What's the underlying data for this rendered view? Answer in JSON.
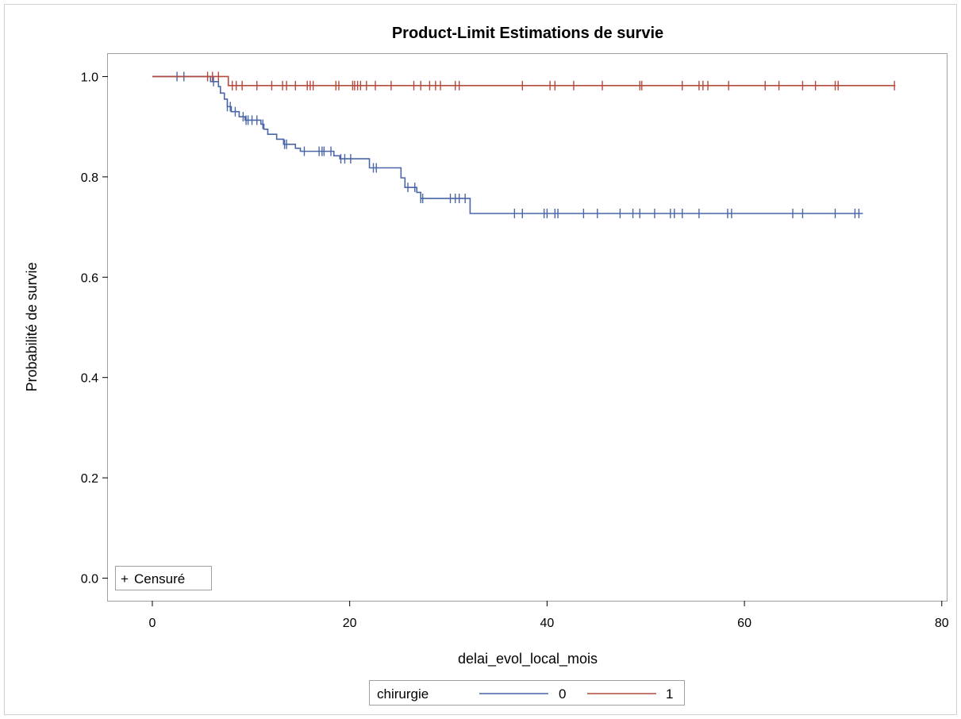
{
  "chart_data": {
    "type": "line",
    "title": "Product-Limit Estimations de survie",
    "xlabel": "delai_evol_local_mois",
    "ylabel": "Probabilité de survie",
    "xlim": [
      -4.5,
      80.5
    ],
    "ylim": [
      -0.045,
      1.045
    ],
    "x_ticks": [
      0,
      20,
      40,
      60,
      80
    ],
    "x_tick_labels": [
      "0",
      "20",
      "40",
      "60",
      "80"
    ],
    "y_ticks": [
      0.0,
      0.2,
      0.4,
      0.6,
      0.8,
      1.0
    ],
    "y_tick_labels": [
      "0.0",
      "0.2",
      "0.4",
      "0.6",
      "0.8",
      "1.0"
    ],
    "grid": false,
    "inset_legend": {
      "symbol": "+",
      "label": "Censuré",
      "placement": "bottom-left"
    },
    "legend": {
      "title": "chirurgie",
      "placement": "bottom"
    },
    "series": [
      {
        "name": "0",
        "color": "#4a66a8",
        "steps": [
          [
            0,
            1.0
          ],
          [
            5.9,
            0.99
          ],
          [
            6.7,
            0.98
          ],
          [
            6.9,
            0.967
          ],
          [
            7.3,
            0.955
          ],
          [
            7.6,
            0.94
          ],
          [
            8.0,
            0.93
          ],
          [
            8.8,
            0.92
          ],
          [
            9.4,
            0.913
          ],
          [
            11.0,
            0.905
          ],
          [
            11.3,
            0.895
          ],
          [
            11.7,
            0.885
          ],
          [
            12.6,
            0.875
          ],
          [
            13.3,
            0.865
          ],
          [
            14.5,
            0.857
          ],
          [
            15.0,
            0.851
          ],
          [
            18.4,
            0.842
          ],
          [
            19.0,
            0.836
          ],
          [
            22.0,
            0.818
          ],
          [
            25.2,
            0.798
          ],
          [
            25.6,
            0.779
          ],
          [
            26.8,
            0.769
          ],
          [
            27.2,
            0.757
          ],
          [
            32.2,
            0.727
          ],
          [
            72.0,
            0.727
          ]
        ],
        "censored": [
          2.5,
          3.2,
          6.2,
          7.6,
          7.9,
          8.4,
          9.2,
          9.5,
          9.7,
          10.1,
          10.6,
          11.2,
          13.4,
          13.6,
          15.4,
          16.9,
          17.2,
          17.4,
          18.1,
          19.1,
          19.5,
          20.1,
          22.4,
          22.7,
          25.9,
          26.6,
          27.2,
          27.4,
          30.2,
          30.7,
          31.1,
          31.7,
          36.7,
          37.5,
          39.7,
          40.0,
          40.8,
          41.1,
          43.7,
          45.1,
          47.4,
          48.7,
          49.4,
          50.9,
          52.5,
          52.9,
          53.7,
          55.4,
          58.3,
          58.7,
          64.9,
          65.9,
          69.2,
          71.2,
          71.6
        ]
      },
      {
        "name": "1",
        "color": "#b34a3c",
        "steps": [
          [
            0,
            1.0
          ],
          [
            7.7,
            0.982
          ],
          [
            75.3,
            0.982
          ]
        ],
        "censored": [
          5.6,
          6.1,
          6.7,
          8.1,
          8.5,
          9.1,
          10.6,
          12.1,
          13.2,
          13.6,
          14.5,
          15.7,
          16.0,
          16.3,
          18.6,
          18.9,
          20.3,
          20.5,
          20.8,
          21.1,
          21.7,
          22.6,
          24.2,
          26.5,
          27.2,
          28.1,
          28.7,
          29.2,
          30.7,
          31.1,
          37.5,
          40.3,
          40.8,
          42.7,
          45.6,
          49.4,
          49.6,
          53.7,
          55.4,
          55.8,
          56.3,
          58.4,
          62.1,
          63.5,
          65.9,
          67.2,
          69.2,
          69.5,
          75.2
        ]
      }
    ]
  }
}
